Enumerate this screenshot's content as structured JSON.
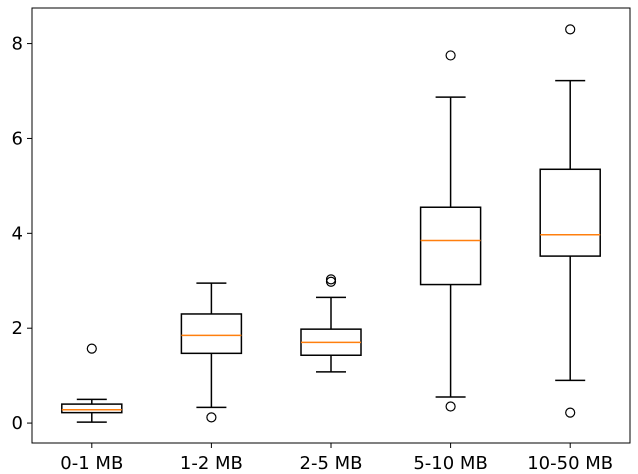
{
  "chart_data": {
    "type": "box",
    "title": "",
    "xlabel": "",
    "ylabel": "",
    "categories": [
      "0-1 MB",
      "1-2 MB",
      "2-5 MB",
      "5-10 MB",
      "10-50 MB"
    ],
    "ylim": [
      -0.42,
      8.75
    ],
    "y_ticks": [
      0,
      2,
      4,
      6,
      8
    ],
    "grid": false,
    "legend": "none",
    "colors": {
      "box": "#000000",
      "median": "#ff7f0e",
      "axis": "#000000"
    },
    "boxes": [
      {
        "whisker_low": 0.02,
        "q1": 0.22,
        "median": 0.28,
        "q3": 0.4,
        "whisker_high": 0.5,
        "fliers": [
          1.57
        ]
      },
      {
        "whisker_low": 0.33,
        "q1": 1.47,
        "median": 1.85,
        "q3": 2.3,
        "whisker_high": 2.95,
        "fliers": [
          0.12
        ]
      },
      {
        "whisker_low": 1.08,
        "q1": 1.43,
        "median": 1.7,
        "q3": 1.98,
        "whisker_high": 2.65,
        "fliers": [
          2.98,
          3.03
        ]
      },
      {
        "whisker_low": 0.55,
        "q1": 2.92,
        "median": 3.85,
        "q3": 4.55,
        "whisker_high": 6.87,
        "fliers": [
          7.75,
          0.35
        ]
      },
      {
        "whisker_low": 0.9,
        "q1": 3.52,
        "median": 3.97,
        "q3": 5.35,
        "whisker_high": 7.22,
        "fliers": [
          8.3,
          0.22
        ]
      }
    ]
  }
}
